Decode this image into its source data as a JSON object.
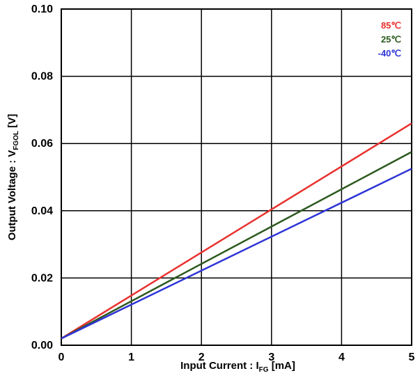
{
  "chart_data": {
    "type": "line",
    "title": "",
    "xlabel": {
      "main": "Input Current : I",
      "sub": "FG",
      "suffix": " [mA]"
    },
    "ylabel": {
      "main": "Output Voltage : V",
      "sub": "FGOL",
      "suffix": " [V]"
    },
    "xlim": [
      0,
      5
    ],
    "ylim": [
      0,
      0.1
    ],
    "x_ticks": [
      0,
      1,
      2,
      3,
      4,
      5
    ],
    "x_tick_labels": [
      "0",
      "1",
      "2",
      "3",
      "4",
      "5"
    ],
    "y_ticks": [
      0,
      0.02,
      0.04,
      0.06,
      0.08,
      0.1
    ],
    "y_tick_labels": [
      "0.00",
      "0.02",
      "0.04",
      "0.06",
      "0.08",
      "0.10"
    ],
    "grid": true,
    "legend_position": "top-right",
    "series": [
      {
        "name": "85℃",
        "color": "#e8312e",
        "x": [
          0,
          5
        ],
        "y": [
          0.002,
          0.066
        ]
      },
      {
        "name": "25℃",
        "color": "#2d5a1f",
        "x": [
          0,
          5
        ],
        "y": [
          0.002,
          0.0575
        ]
      },
      {
        "name": "-40℃",
        "color": "#2f35d6",
        "x": [
          0,
          5
        ],
        "y": [
          0.002,
          0.0525
        ]
      }
    ]
  }
}
